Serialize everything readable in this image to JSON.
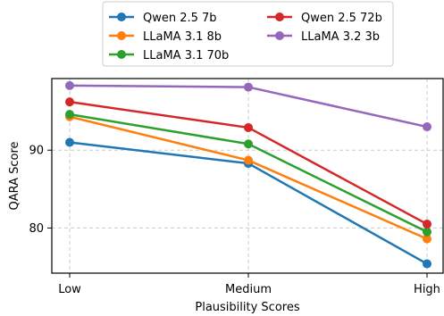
{
  "chart_data": {
    "type": "line",
    "categories": [
      "Low",
      "Medium",
      "High"
    ],
    "xlabel": "Plausibility Scores",
    "ylabel": "QARA Score",
    "ylim": [
      74.2,
      99.2
    ],
    "yticks": [
      80,
      90
    ],
    "grid": true,
    "legend_position": "top-center",
    "series": [
      {
        "name": "Qwen 2.5 7b",
        "color": "#1f77b4",
        "values": [
          91.0,
          88.3,
          75.4
        ]
      },
      {
        "name": "LLaMA 3.1 8b",
        "color": "#ff7f0e",
        "values": [
          94.3,
          88.7,
          78.6
        ]
      },
      {
        "name": "LLaMA 3.1 70b",
        "color": "#2ca02c",
        "values": [
          94.6,
          90.8,
          79.5
        ]
      },
      {
        "name": "Qwen 2.5 72b",
        "color": "#d62728",
        "values": [
          96.2,
          92.9,
          80.5
        ]
      },
      {
        "name": "LLaMA 3.2 3b",
        "color": "#9467bd",
        "values": [
          98.3,
          98.1,
          93.0
        ]
      }
    ]
  }
}
